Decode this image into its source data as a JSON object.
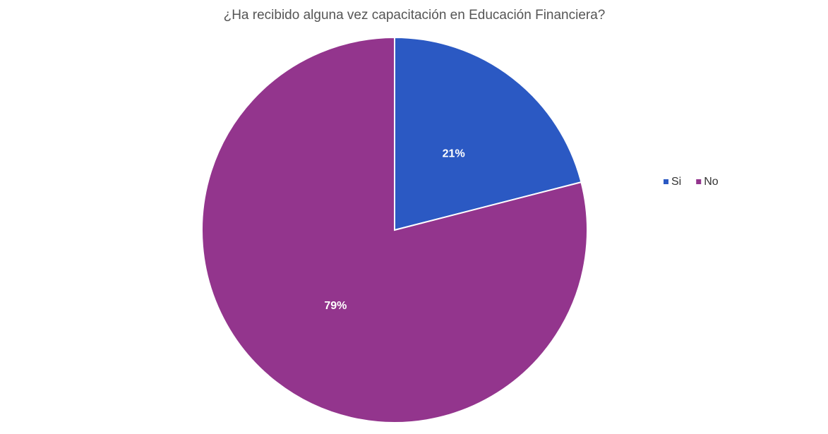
{
  "chart_data": {
    "type": "pie",
    "title": "¿Ha recibido alguna vez capacitación en Educación Financiera?",
    "categories": [
      "Si",
      "No"
    ],
    "values": [
      21,
      79
    ],
    "value_labels": [
      "21%",
      "79%"
    ],
    "colors": [
      "#2b59c3",
      "#93358d"
    ],
    "legend": "right"
  }
}
